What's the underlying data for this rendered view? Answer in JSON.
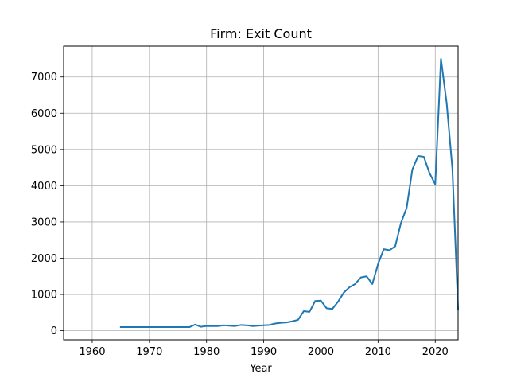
{
  "chart_data": {
    "type": "line",
    "title": "Firm: Exit Count",
    "xlabel": "Year",
    "ylabel": "",
    "xlim": [
      1955,
      2024
    ],
    "ylim": [
      -250,
      7850
    ],
    "grid": true,
    "line_color": "#1f77b4",
    "x_ticks": [
      1960,
      1970,
      1980,
      1990,
      2000,
      2010,
      2020
    ],
    "y_ticks": [
      0,
      1000,
      2000,
      3000,
      4000,
      5000,
      6000,
      7000
    ],
    "series": [
      {
        "x": [
          1965,
          1966,
          1967,
          1968,
          1969,
          1970,
          1971,
          1972,
          1973,
          1974,
          1975,
          1976,
          1977,
          1978,
          1979,
          1980,
          1981,
          1982,
          1983,
          1984,
          1985,
          1986,
          1987,
          1988,
          1989,
          1990,
          1991,
          1992,
          1993,
          1994,
          1995,
          1996,
          1997,
          1998,
          1999,
          2000,
          2001,
          2002,
          2003,
          2004,
          2005,
          2006,
          2007,
          2008,
          2009,
          2010,
          2011,
          2012,
          2013,
          2014,
          2015,
          2016,
          2017,
          2018,
          2019,
          2020,
          2021,
          2022,
          2023,
          2024
        ],
        "values": [
          100,
          100,
          100,
          100,
          100,
          100,
          100,
          100,
          100,
          100,
          100,
          100,
          100,
          170,
          110,
          130,
          130,
          130,
          150,
          140,
          130,
          160,
          150,
          130,
          140,
          150,
          160,
          200,
          220,
          230,
          260,
          300,
          540,
          520,
          820,
          830,
          620,
          600,
          800,
          1050,
          1200,
          1290,
          1470,
          1500,
          1290,
          1840,
          2250,
          2220,
          2330,
          2970,
          3390,
          4450,
          4820,
          4800,
          4350,
          4040,
          7500,
          6280,
          4470,
          600
        ]
      }
    ]
  }
}
